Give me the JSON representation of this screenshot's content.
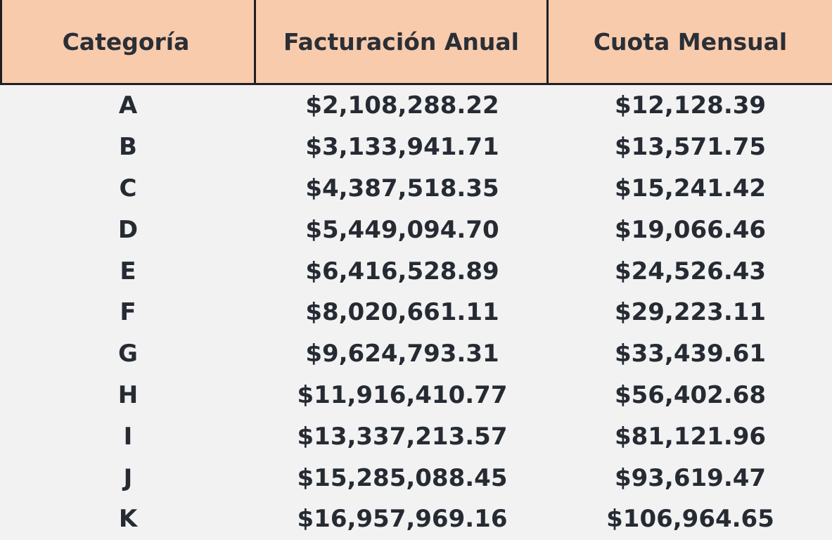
{
  "table": {
    "headers": [
      "Categoría",
      "Facturación Anual",
      "Cuota Mensual"
    ],
    "rows": [
      [
        "A",
        "$2,108,288.22",
        "$12,128.39"
      ],
      [
        "B",
        "$3,133,941.71",
        "$13,571.75"
      ],
      [
        "C",
        "$4,387,518.35",
        "$15,241.42"
      ],
      [
        "D",
        "$5,449,094.70",
        "$19,066.46"
      ],
      [
        "E",
        "$6,416,528.89",
        "$24,526.43"
      ],
      [
        "F",
        "$8,020,661.11",
        "$29,223.11"
      ],
      [
        "G",
        "$9,624,793.31",
        "$33,439.61"
      ],
      [
        "H",
        "$11,916,410.77",
        "$56,402.68"
      ],
      [
        "I",
        "$13,337,213.57",
        "$81,121.96"
      ],
      [
        "J",
        "$15,285,088.45",
        "$93,619.47"
      ],
      [
        "K",
        "$16,957,969.16",
        "$106,964.65"
      ]
    ]
  },
  "colors": {
    "header_bg": "#f8cbad",
    "body_bg": "#f2f2f2",
    "text": "#262b33",
    "rule": "#1f1f1f"
  }
}
